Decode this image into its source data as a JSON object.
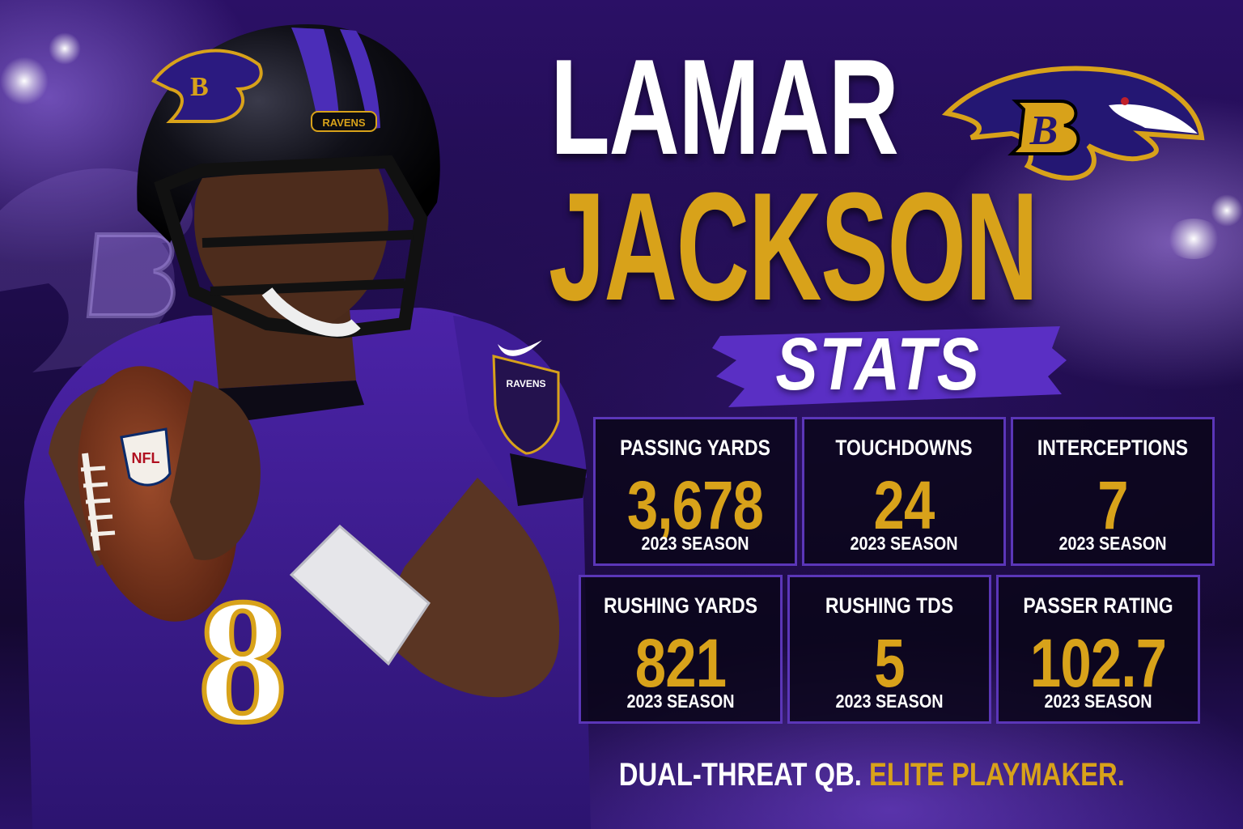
{
  "header": {
    "first_name": "LAMAR",
    "last_name": "JACKSON",
    "subtitle": "STATS"
  },
  "colors": {
    "purple": "#241773",
    "gold": "#d8a21a",
    "white": "#ffffff",
    "panel_border": "#5b36b8"
  },
  "logo": {
    "icon": "ravens-logo-icon"
  },
  "player": {
    "helmet_text": "RAVENS",
    "patch_text": "RAVENS",
    "jersey_number": "8",
    "ball_text": "NFL"
  },
  "stats": [
    {
      "label": "PASSING YARDS",
      "value": "3,678",
      "season": "2023 SEASON"
    },
    {
      "label": "TOUCHDOWNS",
      "value": "24",
      "season": "2023 SEASON"
    },
    {
      "label": "INTERCEPTIONS",
      "value": "7",
      "season": "2023 SEASON"
    },
    {
      "label": "RUSHING YARDS",
      "value": "821",
      "season": "2023 SEASON"
    },
    {
      "label": "RUSHING TDS",
      "value": "5",
      "season": "2023 SEASON"
    },
    {
      "label": "PASSER RATING",
      "value": "102.7",
      "season": "2023 SEASON"
    }
  ],
  "tagline": {
    "part1": "DUAL-THREAT QB.",
    "part2": "ELITE PLAYMAKER."
  }
}
